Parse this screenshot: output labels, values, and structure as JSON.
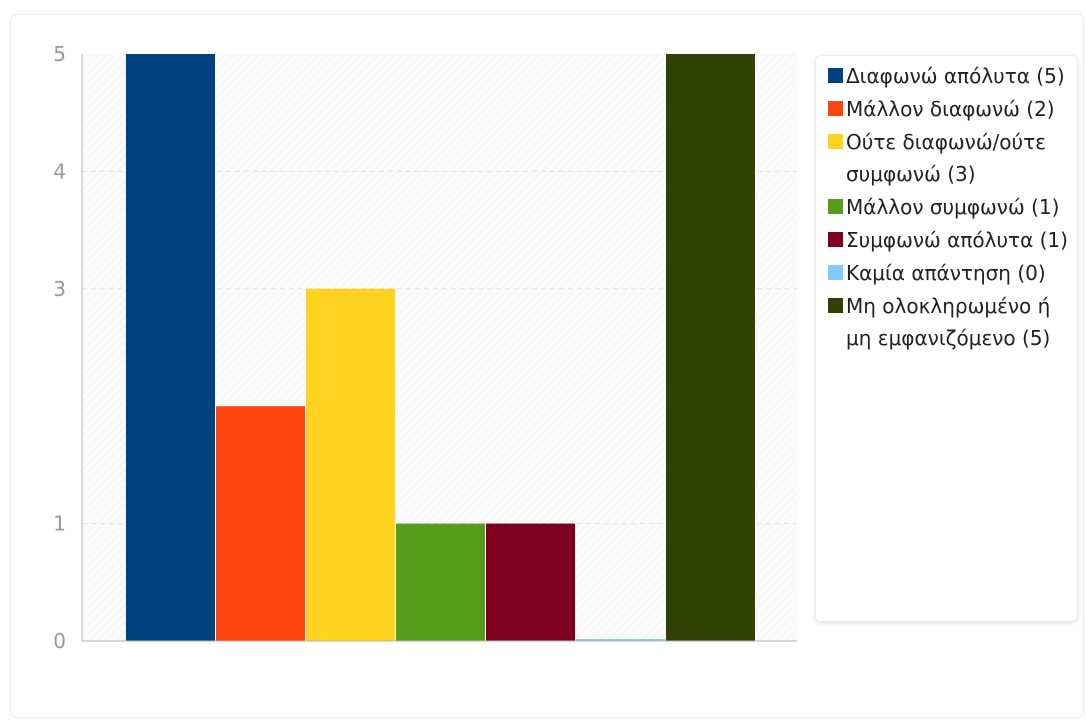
{
  "chart_data": {
    "type": "bar",
    "categories": [
      "Διαφωνώ απόλυτα (5)",
      "Μάλλον διαφωνώ (2)",
      "Ούτε διαφωνώ/ούτε συμφωνώ (3)",
      "Μάλλον συμφωνώ (1)",
      "Συμφωνώ απόλυτα (1)",
      "Καμία απάντηση (0)",
      "Μη ολοκληρωμένο ή μη εμφανιζόμενο (5)"
    ],
    "values": [
      5,
      2,
      3,
      1,
      1,
      0,
      5
    ],
    "colors": [
      "#00427f",
      "#ff4610",
      "#ffd320",
      "#579d1c",
      "#7e0021",
      "#83caff",
      "#314004"
    ],
    "y_ticks": [
      "0",
      "1",
      "3",
      "4",
      "5"
    ],
    "ylim": [
      0,
      5
    ],
    "grid": true,
    "legend_position": "right"
  }
}
